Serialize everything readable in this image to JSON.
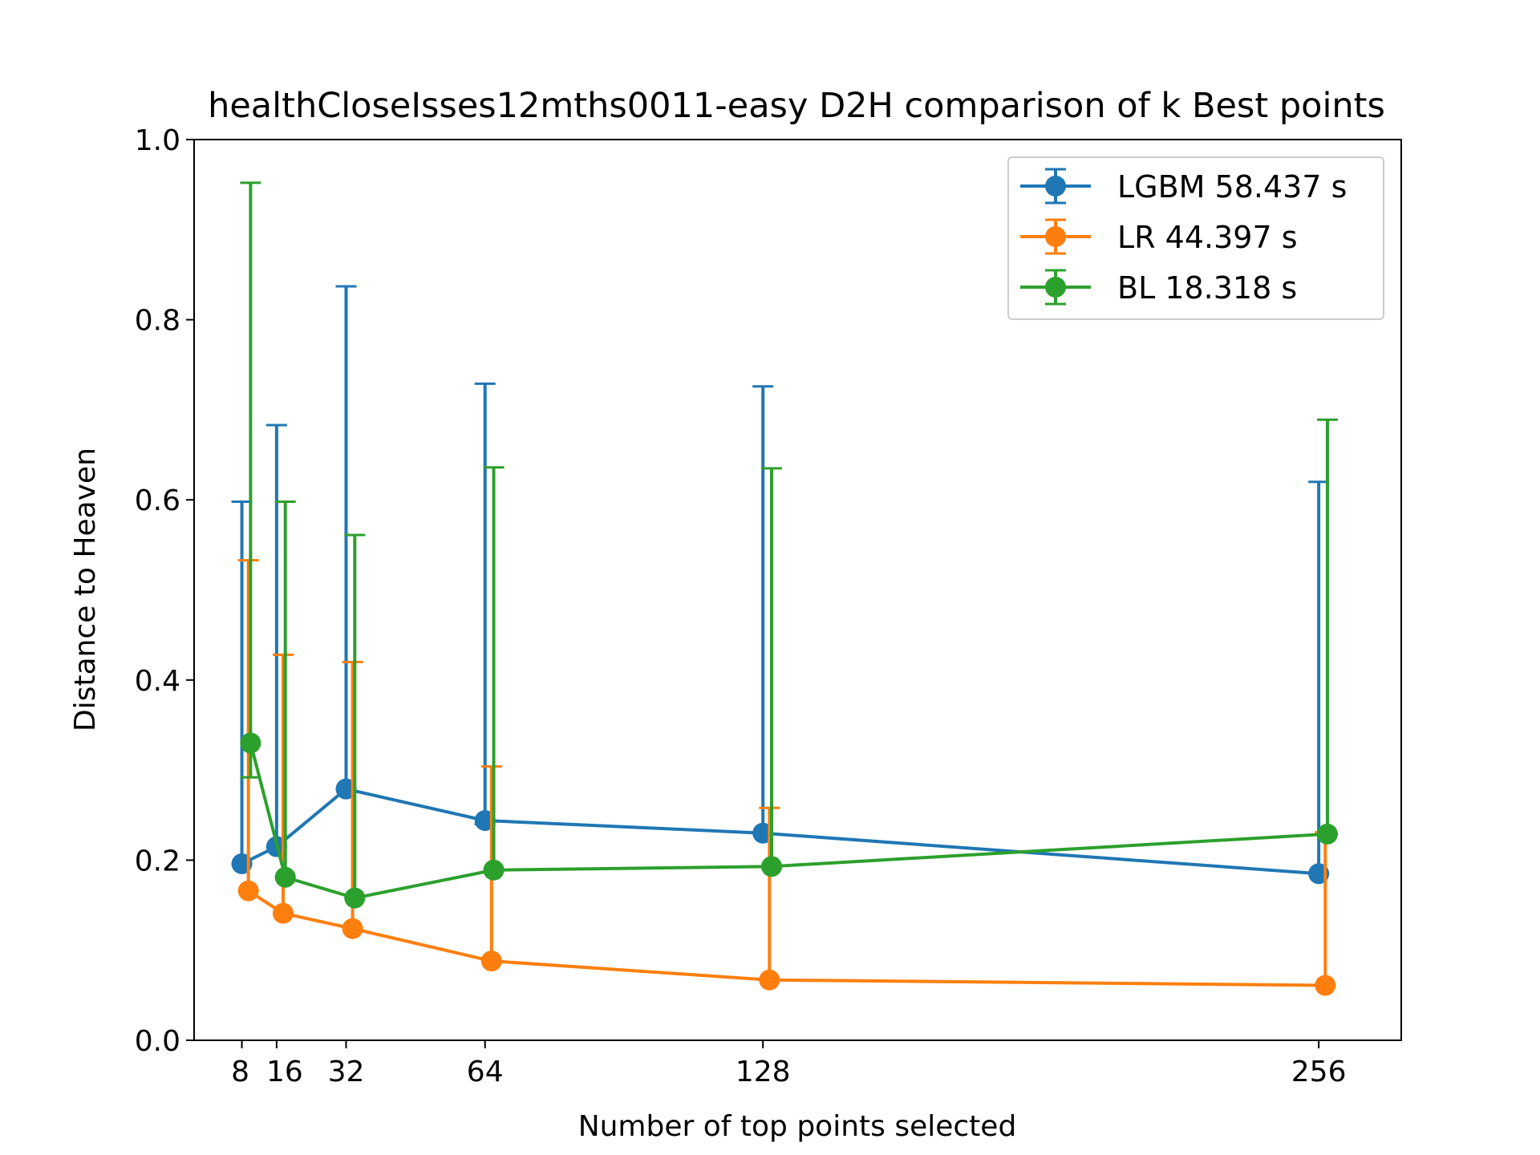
{
  "chart_data": {
    "type": "line",
    "title": "healthCloseIsses12mths0011-easy D2H comparison of k Best points",
    "xlabel": "Number of top points selected",
    "ylabel": "Distance to Heaven",
    "ylim": [
      0.0,
      1.0
    ],
    "xlim": [
      -3,
      275
    ],
    "xticks": [
      8,
      16,
      32,
      64,
      128,
      256
    ],
    "yticks": [
      0.0,
      0.2,
      0.4,
      0.6,
      0.8,
      1.0
    ],
    "ytick_labels": [
      "0.0",
      "0.2",
      "0.4",
      "0.6",
      "0.8",
      "1.0"
    ],
    "grid": false,
    "legend_position": "top-right",
    "series": [
      {
        "name": "LGBM 58.437 s",
        "color": "#1f77b4",
        "x": [
          8,
          16,
          32,
          64,
          128,
          256
        ],
        "y": [
          0.196,
          0.215,
          0.279,
          0.244,
          0.23,
          0.185
        ],
        "err_low": [
          0.0,
          0.0,
          0.0,
          0.004,
          0.0,
          0.0
        ],
        "err_high": [
          0.402,
          0.468,
          0.558,
          0.485,
          0.496,
          0.435
        ]
      },
      {
        "name": "LR 44.397 s",
        "color": "#ff7f0e",
        "x": [
          9.5,
          17.5,
          33.5,
          65.5,
          129.5,
          257.5
        ],
        "y": [
          0.166,
          0.141,
          0.124,
          0.088,
          0.067,
          0.061
        ],
        "err_low": [
          0.0,
          0.0,
          0.0,
          0.0,
          0.0,
          0.0
        ],
        "err_high": [
          0.367,
          0.287,
          0.296,
          0.216,
          0.191,
          0.17
        ]
      },
      {
        "name": "BL 18.318 s",
        "color": "#2ca02c",
        "x": [
          10,
          18,
          34,
          66,
          130,
          258
        ],
        "y": [
          0.33,
          0.181,
          0.158,
          0.189,
          0.193,
          0.229
        ],
        "err_low": [
          0.038,
          0.0,
          0.0,
          0.0,
          0.0,
          0.0
        ],
        "err_high": [
          0.622,
          0.417,
          0.403,
          0.447,
          0.442,
          0.46
        ]
      }
    ]
  }
}
